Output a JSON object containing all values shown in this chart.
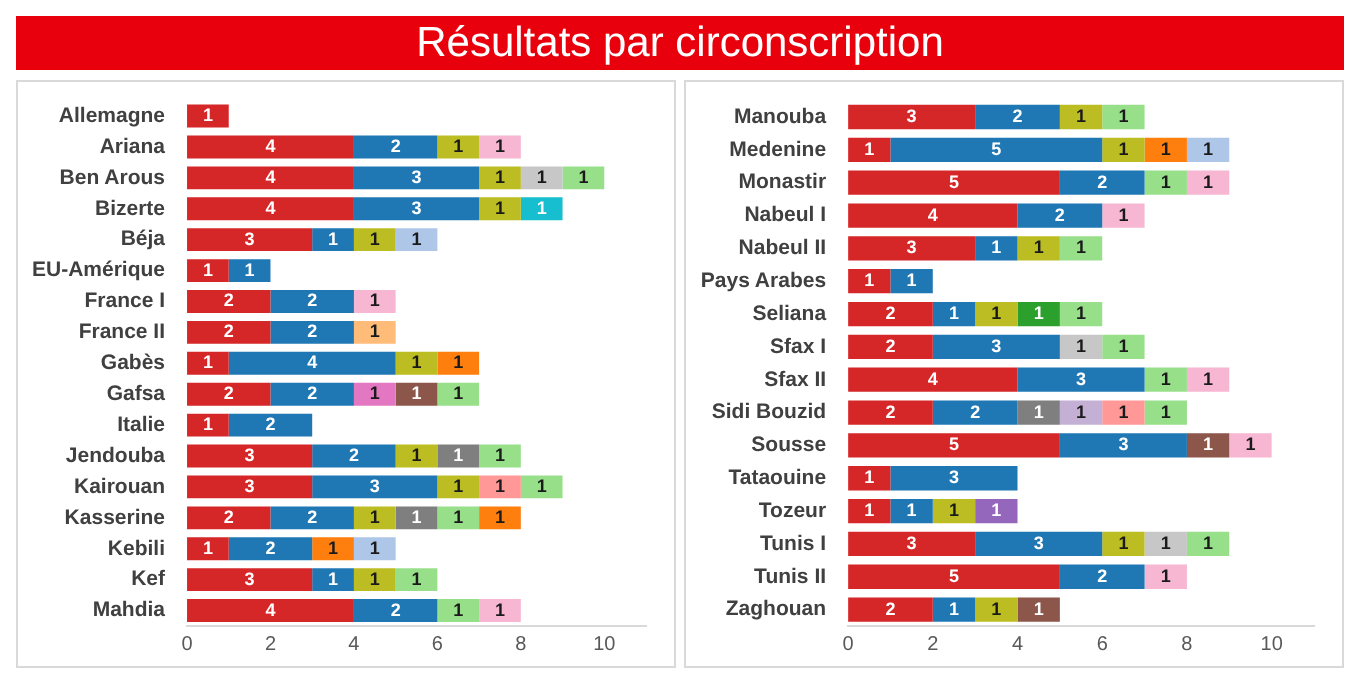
{
  "chart_data": [
    {
      "type": "bar",
      "title": "Résultats par circonscription",
      "orientation": "horizontal",
      "stacked": true,
      "data_labels": true,
      "xlim": [
        0,
        11
      ],
      "xticks": [
        0,
        2,
        4,
        6,
        8,
        10
      ],
      "categories": [
        "Allemagne",
        "Ariana",
        "Ben Arous",
        "Bizerte",
        "Béja",
        "EU-Amérique",
        "France I",
        "France II",
        "Gabès",
        "Gafsa",
        "Italie",
        "Jendouba",
        "Kairouan",
        "Kasserine",
        "Kebili",
        "Kef",
        "Mahdia"
      ],
      "series": [
        {
          "color": "#d62728",
          "values": [
            1,
            4,
            4,
            4,
            3,
            1,
            2,
            2,
            1,
            2,
            1,
            3,
            3,
            2,
            1,
            3,
            4
          ]
        },
        {
          "color": "#1f77b4",
          "values": [
            null,
            2,
            3,
            3,
            1,
            1,
            2,
            2,
            4,
            2,
            2,
            2,
            3,
            2,
            2,
            1,
            2
          ]
        },
        {
          "color": "#bcbd22",
          "values": [
            null,
            1,
            1,
            1,
            1,
            null,
            null,
            null,
            1,
            null,
            null,
            1,
            1,
            1,
            null,
            1,
            null
          ]
        },
        {
          "color": "#e377c2",
          "values": [
            null,
            null,
            null,
            null,
            null,
            null,
            null,
            null,
            null,
            1,
            null,
            null,
            null,
            null,
            null,
            null,
            null
          ]
        },
        {
          "color": "#8c564b",
          "values": [
            null,
            null,
            null,
            null,
            null,
            null,
            null,
            null,
            null,
            1,
            null,
            null,
            null,
            null,
            null,
            null,
            null
          ]
        },
        {
          "color": "#7f7f7f",
          "values": [
            null,
            null,
            null,
            null,
            null,
            null,
            null,
            null,
            null,
            null,
            null,
            1,
            null,
            1,
            null,
            null,
            null
          ]
        },
        {
          "color": "#ff9896",
          "values": [
            null,
            null,
            null,
            null,
            null,
            null,
            null,
            null,
            null,
            null,
            null,
            null,
            1,
            null,
            null,
            null,
            null
          ]
        },
        {
          "color": "#c7c7c7",
          "values": [
            null,
            null,
            1,
            null,
            null,
            null,
            null,
            null,
            null,
            null,
            null,
            null,
            null,
            null,
            null,
            null,
            null
          ]
        },
        {
          "color": "#17becf",
          "values": [
            null,
            null,
            null,
            1,
            null,
            null,
            null,
            null,
            null,
            null,
            null,
            null,
            null,
            null,
            null,
            null,
            null
          ]
        },
        {
          "color": "#98df8a",
          "values": [
            null,
            null,
            1,
            null,
            null,
            null,
            null,
            null,
            null,
            1,
            null,
            1,
            1,
            1,
            null,
            1,
            1
          ]
        },
        {
          "color": "#ff7f0e",
          "values": [
            null,
            null,
            null,
            null,
            null,
            null,
            null,
            null,
            1,
            null,
            null,
            null,
            null,
            1,
            1,
            null,
            null
          ]
        },
        {
          "color": "#aec7e8",
          "values": [
            null,
            null,
            null,
            null,
            1,
            null,
            null,
            null,
            null,
            null,
            null,
            null,
            null,
            null,
            1,
            null,
            null
          ]
        },
        {
          "color": "#ffbb78",
          "values": [
            null,
            null,
            null,
            null,
            null,
            null,
            null,
            1,
            null,
            null,
            null,
            null,
            null,
            null,
            null,
            null,
            null
          ]
        },
        {
          "color": "#f7b6d2",
          "values": [
            null,
            1,
            null,
            null,
            null,
            null,
            1,
            null,
            null,
            null,
            null,
            null,
            null,
            null,
            null,
            null,
            1
          ]
        }
      ]
    },
    {
      "type": "bar",
      "orientation": "horizontal",
      "stacked": true,
      "data_labels": true,
      "xlim": [
        0,
        11
      ],
      "xticks": [
        0,
        2,
        4,
        6,
        8,
        10
      ],
      "categories": [
        "Manouba",
        "Medenine",
        "Monastir",
        "Nabeul I",
        "Nabeul II",
        "Pays Arabes",
        "Seliana",
        "Sfax I",
        "Sfax II",
        "Sidi Bouzid",
        "Sousse",
        "Tataouine",
        "Tozeur",
        "Tunis I",
        "Tunis II",
        "Zaghouan"
      ],
      "series": [
        {
          "color": "#d62728",
          "values": [
            3,
            1,
            5,
            4,
            3,
            1,
            2,
            2,
            4,
            2,
            5,
            1,
            1,
            3,
            5,
            2
          ]
        },
        {
          "color": "#1f77b4",
          "values": [
            2,
            5,
            2,
            2,
            1,
            1,
            1,
            3,
            3,
            2,
            3,
            3,
            1,
            3,
            2,
            1
          ]
        },
        {
          "color": "#bcbd22",
          "values": [
            1,
            1,
            null,
            null,
            1,
            null,
            1,
            null,
            null,
            null,
            null,
            null,
            1,
            1,
            null,
            1
          ]
        },
        {
          "color": "#8c564b",
          "values": [
            null,
            null,
            null,
            null,
            null,
            null,
            null,
            null,
            null,
            null,
            1,
            null,
            null,
            null,
            null,
            1
          ]
        },
        {
          "color": "#7f7f7f",
          "values": [
            null,
            null,
            null,
            null,
            null,
            null,
            null,
            null,
            null,
            1,
            null,
            null,
            null,
            null,
            null,
            null
          ]
        },
        {
          "color": "#c5b0d5",
          "values": [
            null,
            null,
            null,
            null,
            null,
            null,
            null,
            null,
            null,
            1,
            null,
            null,
            null,
            null,
            null,
            null
          ]
        },
        {
          "color": "#ff9896",
          "values": [
            null,
            null,
            null,
            null,
            null,
            null,
            null,
            null,
            null,
            1,
            null,
            null,
            null,
            null,
            null,
            null
          ]
        },
        {
          "color": "#c7c7c7",
          "values": [
            null,
            null,
            null,
            null,
            null,
            null,
            null,
            1,
            null,
            null,
            null,
            null,
            null,
            1,
            null,
            null
          ]
        },
        {
          "color": "#2ca02c",
          "values": [
            null,
            null,
            null,
            null,
            null,
            null,
            1,
            null,
            null,
            null,
            null,
            null,
            null,
            null,
            null,
            null
          ]
        },
        {
          "color": "#9467bd",
          "values": [
            null,
            null,
            null,
            null,
            null,
            null,
            null,
            null,
            null,
            null,
            null,
            null,
            1,
            null,
            null,
            null
          ]
        },
        {
          "color": "#98df8a",
          "values": [
            1,
            null,
            1,
            null,
            1,
            null,
            1,
            1,
            1,
            1,
            null,
            null,
            null,
            1,
            null,
            null
          ]
        },
        {
          "color": "#ff7f0e",
          "values": [
            null,
            1,
            null,
            null,
            null,
            null,
            null,
            null,
            null,
            null,
            null,
            null,
            null,
            null,
            null,
            null
          ]
        },
        {
          "color": "#aec7e8",
          "values": [
            null,
            1,
            null,
            null,
            null,
            null,
            null,
            null,
            null,
            null,
            null,
            null,
            null,
            null,
            null,
            null
          ]
        },
        {
          "color": "#f7b6d2",
          "values": [
            null,
            null,
            1,
            1,
            null,
            null,
            null,
            null,
            1,
            null,
            1,
            null,
            null,
            null,
            1,
            null
          ]
        }
      ]
    }
  ]
}
